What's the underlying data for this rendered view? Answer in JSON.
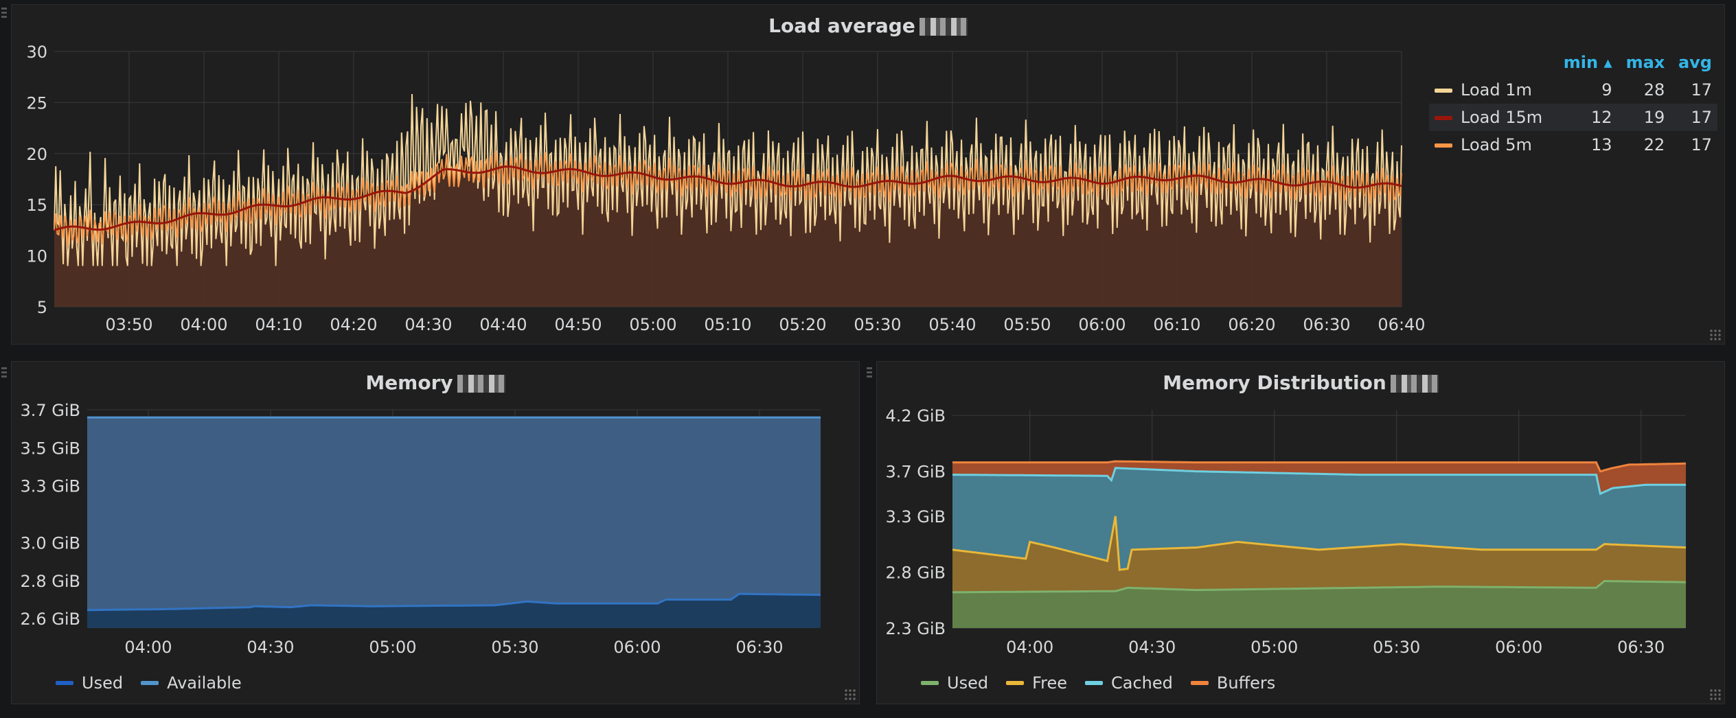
{
  "colors": {
    "load1": "#f4d598",
    "load15": "#99150b",
    "load5": "#f79646",
    "loadFill": "#4f2f24",
    "memUsed": "#1d3d5e",
    "memUsedLine": "#3274c4",
    "memAvail": "#3e5f83",
    "memAvailLine": "#5195ce",
    "distUsed": "#62804a",
    "distUsedLine": "#7eb26d",
    "distFree": "#8d6c2e",
    "distFreeLine": "#eab839",
    "distCached": "#467d8f",
    "distCachedLine": "#6ed0e0",
    "distBuffers": "#a24d2c",
    "distBuffersLine": "#ef843c",
    "grid": "#3a3a3c",
    "axisText": "#d8d9da",
    "header": "#33b5e5"
  },
  "load_panel": {
    "title": "Load average",
    "legend_headers": {
      "min": "min ▴",
      "max": "max",
      "avg": "avg"
    },
    "legend_rows": [
      {
        "name": "Load 1m",
        "min": "9",
        "max": "28",
        "avg": "17"
      },
      {
        "name": "Load 15m",
        "min": "12",
        "max": "19",
        "avg": "17"
      },
      {
        "name": "Load 5m",
        "min": "13",
        "max": "22",
        "avg": "17"
      }
    ]
  },
  "memory_panel": {
    "title": "Memory",
    "legend": [
      "Used",
      "Available"
    ]
  },
  "dist_panel": {
    "title": "Memory Distribution",
    "legend": [
      "Used",
      "Free",
      "Cached",
      "Buffers"
    ]
  },
  "chart_data": [
    {
      "type": "line",
      "title": "Load average",
      "x_ticks": [
        "03:50",
        "04:00",
        "04:10",
        "04:20",
        "04:30",
        "04:40",
        "04:50",
        "05:00",
        "05:10",
        "05:20",
        "05:30",
        "05:40",
        "05:50",
        "06:00",
        "06:10",
        "06:20",
        "06:30",
        "06:40"
      ],
      "x_range_minutes": [
        0,
        180
      ],
      "x_tick_start_minutes": 10,
      "x_tick_step_minutes": 10,
      "y_ticks": [
        5,
        10,
        15,
        20,
        25,
        30
      ],
      "ylim": [
        5,
        30
      ],
      "series": [
        {
          "name": "Load 1m",
          "min": 9,
          "max": 28,
          "avg": 17,
          "kind": "oscillating",
          "stats": "amplitude about 5 around trend"
        },
        {
          "name": "Load 15m",
          "min": 12,
          "max": 19,
          "avg": 17,
          "kind": "smooth"
        },
        {
          "name": "Load 5m",
          "min": 13,
          "max": 22,
          "avg": 17,
          "kind": "medium"
        }
      ],
      "trend_points": [
        [
          0,
          12.5
        ],
        [
          10,
          13
        ],
        [
          20,
          14
        ],
        [
          30,
          15
        ],
        [
          40,
          15.8
        ],
        [
          47,
          16.3
        ],
        [
          52,
          18.2
        ],
        [
          60,
          18.5
        ],
        [
          70,
          18.2
        ],
        [
          80,
          17.8
        ],
        [
          90,
          17.3
        ],
        [
          100,
          17
        ],
        [
          110,
          17
        ],
        [
          120,
          17.6
        ],
        [
          130,
          17.5
        ],
        [
          140,
          17.3
        ],
        [
          150,
          17.7
        ],
        [
          160,
          17.3
        ],
        [
          170,
          17
        ],
        [
          180,
          16.8
        ]
      ]
    },
    {
      "type": "area",
      "title": "Memory",
      "x_ticks": [
        "04:00",
        "04:30",
        "05:00",
        "05:30",
        "06:00",
        "06:30"
      ],
      "x_range_minutes": [
        0,
        180
      ],
      "x_tick_start_minutes": 15,
      "x_tick_step_minutes": 30,
      "y_ticks": [
        "2.6 GiB",
        "2.8 GiB",
        "3.0 GiB",
        "3.3 GiB",
        "3.5 GiB",
        "3.7 GiB"
      ],
      "ylim": [
        2.55,
        3.7
      ],
      "series": [
        {
          "name": "Used",
          "points": [
            [
              0,
              2.645
            ],
            [
              20,
              2.65
            ],
            [
              40,
              2.66
            ],
            [
              41,
              2.665
            ],
            [
              50,
              2.66
            ],
            [
              55,
              2.67
            ],
            [
              70,
              2.665
            ],
            [
              100,
              2.67
            ],
            [
              108,
              2.69
            ],
            [
              115,
              2.68
            ],
            [
              140,
              2.68
            ],
            [
              142,
              2.7
            ],
            [
              158,
              2.7
            ],
            [
              160,
              2.73
            ],
            [
              180,
              2.725
            ]
          ]
        },
        {
          "name": "Available",
          "points": [
            [
              0,
              3.66
            ],
            [
              180,
              3.66
            ]
          ]
        }
      ]
    },
    {
      "type": "area",
      "title": "Memory Distribution",
      "stacked_bands": true,
      "x_ticks": [
        "04:00",
        "04:30",
        "05:00",
        "05:30",
        "06:00",
        "06:30"
      ],
      "x_range_minutes": [
        0,
        180
      ],
      "x_tick_start_minutes": 19,
      "x_tick_step_minutes": 30,
      "y_ticks": [
        "2.3 GiB",
        "2.8 GiB",
        "3.3 GiB",
        "3.7 GiB",
        "4.2 GiB"
      ],
      "ylim": [
        2.3,
        4.25
      ],
      "series": [
        {
          "name": "Used",
          "points": [
            [
              0,
              2.62
            ],
            [
              40,
              2.63
            ],
            [
              43,
              2.66
            ],
            [
              60,
              2.64
            ],
            [
              120,
              2.67
            ],
            [
              158,
              2.66
            ],
            [
              160,
              2.72
            ],
            [
              180,
              2.71
            ]
          ]
        },
        {
          "name": "Free",
          "points": [
            [
              0,
              3.0
            ],
            [
              18,
              2.92
            ],
            [
              19,
              3.07
            ],
            [
              25,
              3.02
            ],
            [
              38,
              2.9
            ],
            [
              40,
              3.3
            ],
            [
              41,
              2.82
            ],
            [
              43,
              2.83
            ],
            [
              44,
              3.0
            ],
            [
              60,
              3.02
            ],
            [
              70,
              3.07
            ],
            [
              90,
              3.0
            ],
            [
              110,
              3.05
            ],
            [
              130,
              3.0
            ],
            [
              158,
              3.0
            ],
            [
              160,
              3.05
            ],
            [
              180,
              3.02
            ]
          ]
        },
        {
          "name": "Cached",
          "points": [
            [
              0,
              3.67
            ],
            [
              38,
              3.66
            ],
            [
              39,
              3.62
            ],
            [
              40,
              3.73
            ],
            [
              60,
              3.7
            ],
            [
              100,
              3.67
            ],
            [
              158,
              3.67
            ],
            [
              159,
              3.5
            ],
            [
              162,
              3.55
            ],
            [
              170,
              3.58
            ],
            [
              180,
              3.58
            ]
          ]
        },
        {
          "name": "Buffers",
          "points": [
            [
              0,
              3.78
            ],
            [
              38,
              3.78
            ],
            [
              40,
              3.79
            ],
            [
              60,
              3.78
            ],
            [
              158,
              3.78
            ],
            [
              159,
              3.7
            ],
            [
              162,
              3.73
            ],
            [
              166,
              3.76
            ],
            [
              180,
              3.77
            ]
          ]
        }
      ]
    }
  ]
}
